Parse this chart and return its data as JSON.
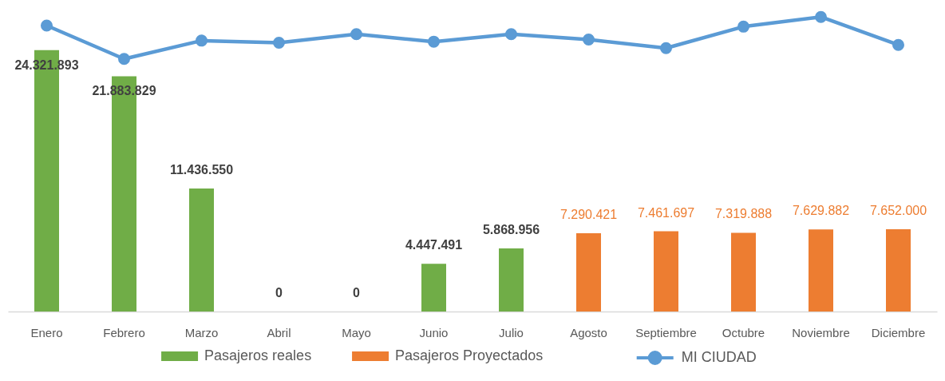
{
  "chart_data": {
    "type": "bar",
    "tick_labels": "x",
    "categories": [
      "Enero",
      "Febrero",
      "Marzo",
      "Abril",
      "Mayo",
      "Junio",
      "Julio",
      "Agosto",
      "Septiembre",
      "Octubre",
      "Noviembre",
      "Diciembre"
    ],
    "series": [
      {
        "name": "Pasajeros reales",
        "color": "#70ad47",
        "values": [
          24321893,
          21883829,
          11436550,
          0,
          0,
          4447491,
          5868956,
          null,
          null,
          null,
          null,
          null
        ],
        "value_labels": [
          "24.321.893",
          "21.883.829",
          "11.436.550",
          "0",
          "0",
          "4.447.491",
          "5.868.956",
          null,
          null,
          null,
          null,
          null
        ]
      },
      {
        "name": "Pasajeros Proyectados",
        "color": "#ed7d31",
        "values": [
          null,
          null,
          null,
          null,
          null,
          null,
          null,
          7290421,
          7461697,
          7319888,
          7629882,
          7652000
        ],
        "value_labels": [
          null,
          null,
          null,
          null,
          null,
          null,
          null,
          "7.290.421",
          "7.461.697",
          "7.319.888",
          "7.629.882",
          "7.652.000"
        ]
      },
      {
        "name": "MI CIUDAD",
        "type": "line",
        "marker": "circle",
        "color": "#5b9bd5",
        "values": [
          26600000,
          23500000,
          25200000,
          25000000,
          25800000,
          25100000,
          25800000,
          25300000,
          24500000,
          26500000,
          27400000,
          24800000
        ]
      }
    ],
    "legend": "bottom"
  }
}
